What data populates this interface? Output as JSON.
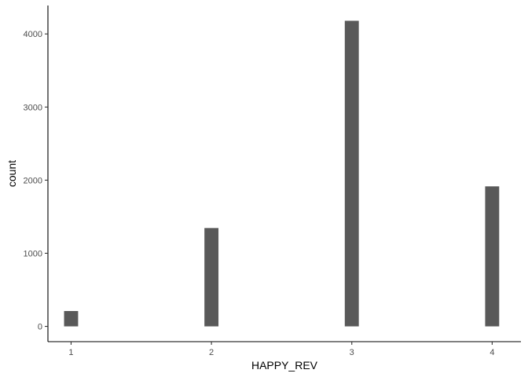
{
  "chart_data": {
    "type": "bar",
    "title": "",
    "xlabel": "HAPPY_REV",
    "ylabel": "count",
    "x": [
      1,
      2,
      3,
      4
    ],
    "values": [
      210,
      1345,
      4180,
      1915
    ],
    "x_ticks": [
      "1",
      "2",
      "3",
      "4"
    ],
    "y_ticks": [
      0,
      1000,
      2000,
      3000,
      4000
    ],
    "y_tick_labels": [
      "0",
      "1000",
      "2000",
      "3000",
      "4000"
    ],
    "xlim": [
      0.835,
      4.205
    ],
    "ylim": [
      -209,
      4389
    ],
    "grid": false,
    "legend": "none",
    "bar_color": "#595959",
    "axis_color": "#000000",
    "tick_label_color": "#4d4d4d"
  }
}
